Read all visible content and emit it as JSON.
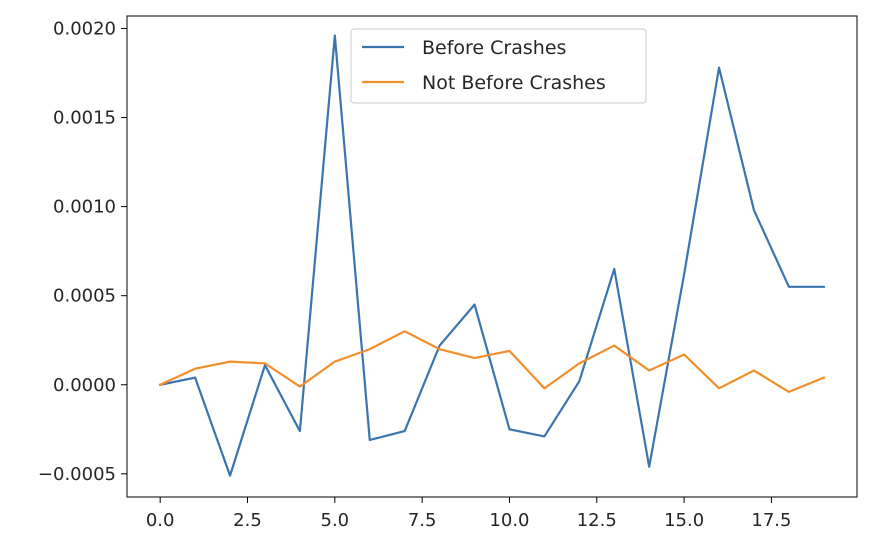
{
  "chart_data": {
    "type": "line",
    "title": "",
    "xlabel": "",
    "ylabel": "",
    "xlim": [
      -0.95,
      19.95
    ],
    "ylim": [
      -0.00063,
      0.00207
    ],
    "x_ticks": [
      0.0,
      2.5,
      5.0,
      7.5,
      10.0,
      12.5,
      15.0,
      17.5
    ],
    "x_tick_labels": [
      "0.0",
      "2.5",
      "5.0",
      "7.5",
      "10.0",
      "12.5",
      "15.0",
      "17.5"
    ],
    "y_ticks": [
      -0.0005,
      0.0,
      0.0005,
      0.001,
      0.0015,
      0.002
    ],
    "y_tick_labels": [
      "−0.0005",
      "0.0000",
      "0.0005",
      "0.0010",
      "0.0015",
      "0.0020"
    ],
    "grid": false,
    "legend_position": "upper-center",
    "x": [
      0,
      1,
      2,
      3,
      4,
      5,
      6,
      7,
      8,
      9,
      10,
      11,
      12,
      13,
      14,
      15,
      16,
      17,
      18,
      19
    ],
    "series": [
      {
        "name": "Before Crashes",
        "color": "#3a75b0",
        "values": [
          0.0,
          4e-05,
          -0.00051,
          0.00011,
          -0.00026,
          0.00196,
          -0.00031,
          -0.00026,
          0.00022,
          0.00045,
          -0.00025,
          -0.00029,
          2e-05,
          0.00065,
          -0.00046,
          0.00062,
          0.00178,
          0.00098,
          0.00055,
          0.00055
        ]
      },
      {
        "name": "Not Before Crashes",
        "color": "#f28e2b",
        "values": [
          0.0,
          9e-05,
          0.00013,
          0.00012,
          -1e-05,
          0.00013,
          0.0002,
          0.0003,
          0.0002,
          0.00015,
          0.00019,
          -2e-05,
          0.00012,
          0.00022,
          8e-05,
          0.00017,
          -2e-05,
          8e-05,
          -4e-05,
          4e-05
        ]
      }
    ]
  }
}
